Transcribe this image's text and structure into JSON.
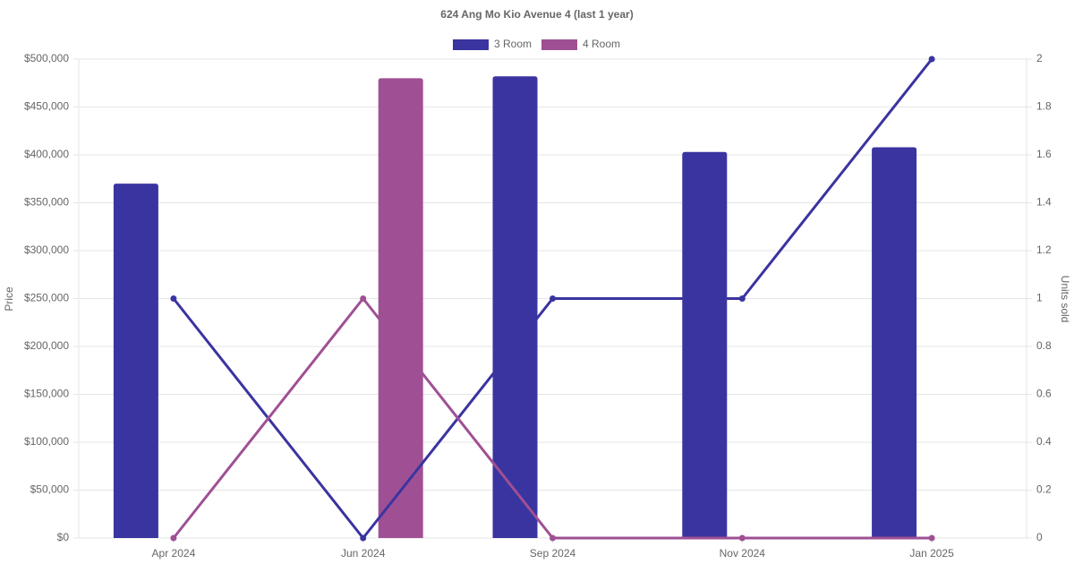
{
  "chart_data": {
    "type": "bar-line",
    "title": "624 Ang Mo Kio Avenue 4 (last 1 year)",
    "y_label": "Price",
    "y2_label": "Units sold",
    "categories": [
      "Apr 2024",
      "Jun 2024",
      "Sep 2024",
      "Nov 2024",
      "Jan 2025"
    ],
    "series": [
      {
        "name": "3 Room",
        "color": "#3a34a0",
        "values": [
          370000,
          null,
          482000,
          403000,
          408000
        ],
        "units_sold": [
          1,
          0,
          1,
          1,
          2
        ]
      },
      {
        "name": "4 Room",
        "color": "#9f5094",
        "values": [
          null,
          480000,
          null,
          null,
          null
        ],
        "units_sold": [
          0,
          1,
          0,
          0,
          0
        ]
      }
    ],
    "ylim": [
      0,
      500000
    ],
    "yticks": [
      {
        "value": 0,
        "label": "$0"
      },
      {
        "value": 50000,
        "label": "$50,000"
      },
      {
        "value": 100000,
        "label": "$100,000"
      },
      {
        "value": 150000,
        "label": "$150,000"
      },
      {
        "value": 200000,
        "label": "$200,000"
      },
      {
        "value": 250000,
        "label": "$250,000"
      },
      {
        "value": 300000,
        "label": "$300,000"
      },
      {
        "value": 350000,
        "label": "$350,000"
      },
      {
        "value": 400000,
        "label": "$400,000"
      },
      {
        "value": 450000,
        "label": "$450,000"
      },
      {
        "value": 500000,
        "label": "$500,000"
      }
    ],
    "y2lim": [
      0,
      2
    ],
    "y2ticks": [
      0,
      0.2,
      0.4,
      0.6,
      0.8,
      1,
      1.2,
      1.4,
      1.6,
      1.8,
      2
    ],
    "grid": true,
    "legend": "top"
  }
}
